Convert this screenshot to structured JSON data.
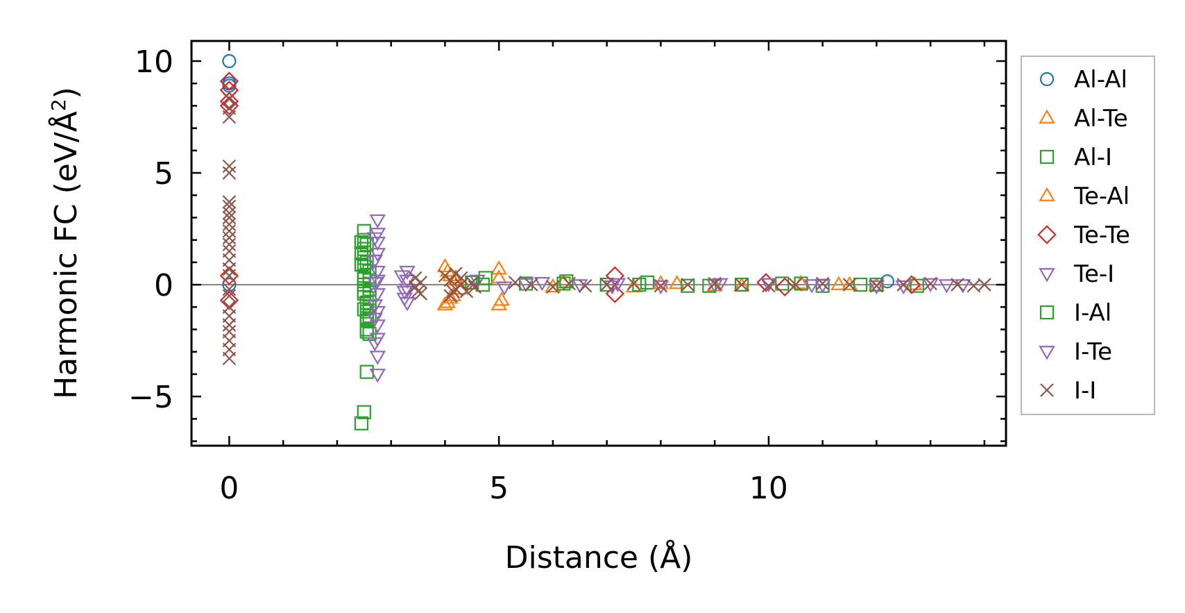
{
  "chart_data": {
    "type": "scatter",
    "title": "",
    "xlabel": "Distance (Å)",
    "ylabel": "Harmonic FC (eV/Å",
    "ylabel_sup": "2",
    "ylabel_close": ")",
    "xlim": [
      -0.7,
      14.4
    ],
    "ylim": [
      -7.2,
      10.9
    ],
    "x_ticks": [
      0,
      5,
      10
    ],
    "x_tick_labels": [
      "0",
      "5",
      "10"
    ],
    "y_ticks": [
      -5,
      0,
      5,
      10
    ],
    "y_tick_labels": [
      "−5",
      "0",
      "5",
      "10"
    ],
    "x_minor_step": 1,
    "y_minor_step": 1,
    "reference_line_y": 0,
    "grid": false,
    "legend_position": "outside-right",
    "series": [
      {
        "name": "Al-Al",
        "marker": "circle",
        "color": "#1f77b4",
        "x": [
          0,
          0,
          0,
          0,
          12.2
        ],
        "y": [
          10.0,
          9.0,
          8.9,
          0.0,
          0.15
        ]
      },
      {
        "name": "Al-Te",
        "marker": "triangle-up",
        "color": "#ff7f0e",
        "x": [
          4.0,
          4.05,
          4.1,
          4.15,
          4.2,
          4.3,
          5.0,
          5.05,
          6.2,
          7.5,
          8.3,
          9.5,
          10.6,
          11.3,
          12.0,
          12.7
        ],
        "y": [
          0.8,
          -0.8,
          0.4,
          -0.5,
          0.3,
          -0.2,
          0.7,
          -0.7,
          0.1,
          -0.1,
          0.05,
          -0.05,
          0.05,
          0.0,
          -0.05,
          0.0
        ]
      },
      {
        "name": "Al-I",
        "marker": "square",
        "color": "#2ca02c",
        "x": [
          2.5,
          2.5,
          2.5,
          2.5,
          2.5,
          2.5,
          2.5,
          2.5,
          2.55,
          2.55,
          2.55,
          2.55,
          2.55,
          2.55,
          2.6,
          2.6,
          2.6,
          2.6,
          2.6,
          2.6,
          2.6,
          2.55,
          2.5,
          4.5,
          4.75,
          5.5,
          6.25,
          7.0,
          7.75,
          8.5,
          9.5,
          10.25,
          11.0,
          12.0,
          12.75
        ],
        "y": [
          2.4,
          2.0,
          1.6,
          1.2,
          0.8,
          0.4,
          0.0,
          -0.4,
          -0.8,
          -1.2,
          -1.6,
          -2.0,
          1.8,
          1.0,
          0.6,
          0.2,
          -0.2,
          -0.6,
          -1.0,
          -1.4,
          -2.2,
          -3.9,
          -5.7,
          0.1,
          0.3,
          0.05,
          0.15,
          0.0,
          0.1,
          -0.05,
          0.0,
          0.05,
          -0.05,
          0.0,
          -0.05
        ]
      },
      {
        "name": "Te-Al",
        "marker": "triangle-up",
        "color": "#ff7f0e",
        "x": [
          4.0,
          4.05,
          4.1,
          4.2,
          5.0,
          5.0,
          6.0,
          8.0,
          9.0,
          11.5
        ],
        "y": [
          -0.9,
          0.6,
          -0.6,
          0.2,
          -0.9,
          0.3,
          -0.1,
          0.05,
          -0.05,
          0.0
        ]
      },
      {
        "name": "Te-Te",
        "marker": "diamond",
        "color": "#d62728",
        "x": [
          0,
          0,
          0,
          0,
          0,
          0,
          7.15,
          7.15,
          9.95,
          10.3,
          12.65
        ],
        "y": [
          9.1,
          8.7,
          8.2,
          8.0,
          -0.7,
          0.4,
          0.4,
          -0.4,
          0.1,
          -0.1,
          0.0
        ]
      },
      {
        "name": "Te-I",
        "marker": "triangle-down",
        "color": "#9467bd",
        "x": [
          2.75,
          2.75,
          2.75,
          2.75,
          2.75,
          2.75,
          2.75,
          2.75,
          2.75,
          2.75,
          2.75,
          2.75,
          3.3,
          3.3,
          3.3,
          3.3,
          4.6,
          5.1,
          5.5,
          6.5,
          7.2,
          8.0,
          9.0,
          10.0,
          11.0,
          12.0,
          13.0,
          13.3
        ],
        "y": [
          2.9,
          2.3,
          1.9,
          1.4,
          0.6,
          0.2,
          -0.4,
          -1.2,
          -1.8,
          -2.4,
          -3.2,
          -4.0,
          0.6,
          0.2,
          -0.2,
          -0.8,
          0.2,
          -0.1,
          0.05,
          0.0,
          0.05,
          -0.05,
          0.0,
          0.05,
          0.0,
          -0.05,
          0.05,
          0.0
        ]
      },
      {
        "name": "I-Al",
        "marker": "square",
        "color": "#2ca02c",
        "x": [
          2.45,
          2.45,
          2.45,
          2.5,
          2.5,
          2.5,
          2.55,
          2.55,
          2.45,
          4.7,
          6.2,
          7.6,
          8.9,
          10.6,
          11.7
        ],
        "y": [
          1.9,
          1.4,
          0.9,
          0.3,
          -0.3,
          -1.1,
          -1.5,
          -2.1,
          -6.2,
          0.0,
          0.05,
          0.0,
          -0.05,
          0.05,
          0.0
        ]
      },
      {
        "name": "I-Te",
        "marker": "triangle-down",
        "color": "#9467bd",
        "x": [
          2.7,
          2.7,
          2.7,
          2.7,
          2.7,
          2.7,
          3.2,
          3.25,
          3.25,
          5.8,
          7.1,
          9.1,
          10.8,
          12.5,
          13.6
        ],
        "y": [
          2.1,
          1.1,
          0.1,
          -0.9,
          -1.5,
          -2.6,
          0.4,
          -0.3,
          -0.6,
          0.1,
          -0.05,
          0.05,
          0.0,
          -0.05,
          0.0
        ]
      },
      {
        "name": "I-I",
        "marker": "x",
        "color": "#8c564b",
        "x": [
          0,
          0,
          0,
          0,
          0,
          0,
          0,
          0,
          0,
          0,
          0,
          0,
          0,
          0,
          0,
          0,
          0,
          0,
          0,
          0,
          0,
          0,
          0,
          0,
          0,
          0,
          3.45,
          3.45,
          3.5,
          3.55,
          3.55,
          4.0,
          4.1,
          4.2,
          4.3,
          4.4,
          4.5,
          4.55,
          4.1,
          4.2,
          4.3,
          4.15,
          5.3,
          5.6,
          6.0,
          6.3,
          6.6,
          7.0,
          7.5,
          8.0,
          8.5,
          9.0,
          9.5,
          10.0,
          10.5,
          11.0,
          11.5,
          12.0,
          12.5,
          13.0,
          13.5,
          13.8,
          14.0
        ],
        "y": [
          8.3,
          7.9,
          7.5,
          5.3,
          5.0,
          3.7,
          3.5,
          3.2,
          3.0,
          2.7,
          2.4,
          2.1,
          1.8,
          1.5,
          1.1,
          0.7,
          0.4,
          -0.2,
          -0.5,
          -1.0,
          -1.4,
          -1.8,
          -2.1,
          -2.5,
          -2.9,
          -3.3,
          0.3,
          -0.1,
          -0.3,
          0.1,
          -0.4,
          0.4,
          0.2,
          -0.2,
          0.3,
          -0.3,
          0.1,
          -0.1,
          -0.5,
          0.5,
          0.0,
          -0.3,
          0.1,
          0.0,
          -0.1,
          0.05,
          -0.05,
          0.0,
          0.05,
          -0.05,
          0.0,
          0.05,
          0.0,
          -0.05,
          0.0,
          0.05,
          0.0,
          -0.05,
          0.0,
          0.05,
          0.0,
          -0.05,
          0.0
        ]
      }
    ]
  }
}
